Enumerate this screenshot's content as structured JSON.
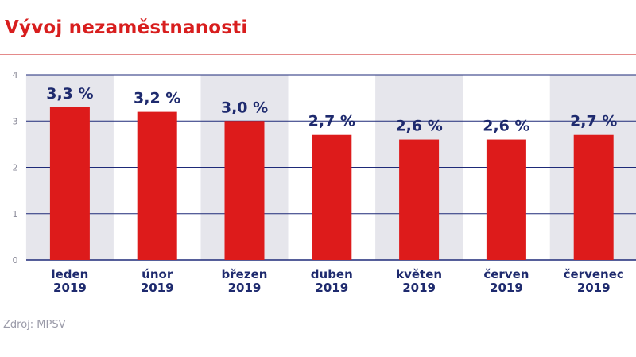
{
  "title": "Vývoj nezaměstnanosti",
  "source": "Zdroj: MPSV",
  "colors": {
    "title": "#d81e1e",
    "bar": "#dd1b1b",
    "band": "#e6e6ec",
    "axis_line": "#1e2a78",
    "label": "#1e2a6e",
    "tick": "#8a8a99"
  },
  "chart_data": {
    "type": "bar",
    "title": "Vývoj nezaměstnanosti",
    "categories": [
      {
        "month": "leden",
        "year": "2019"
      },
      {
        "month": "únor",
        "year": "2019"
      },
      {
        "month": "březen",
        "year": "2019"
      },
      {
        "month": "duben",
        "year": "2019"
      },
      {
        "month": "květen",
        "year": "2019"
      },
      {
        "month": "červen",
        "year": "2019"
      },
      {
        "month": "červenec",
        "year": "2019"
      }
    ],
    "values": [
      3.3,
      3.2,
      3.0,
      2.7,
      2.6,
      2.6,
      2.7
    ],
    "value_labels": [
      "3,3 %",
      "3,2 %",
      "3,0 %",
      "2,7 %",
      "2,6 %",
      "2,6 %",
      "2,7 %"
    ],
    "ylim": [
      0,
      4
    ],
    "yticks": [
      0,
      1,
      2,
      3,
      4
    ],
    "xlabel": "",
    "ylabel": "",
    "grid": true,
    "legend": "none"
  }
}
